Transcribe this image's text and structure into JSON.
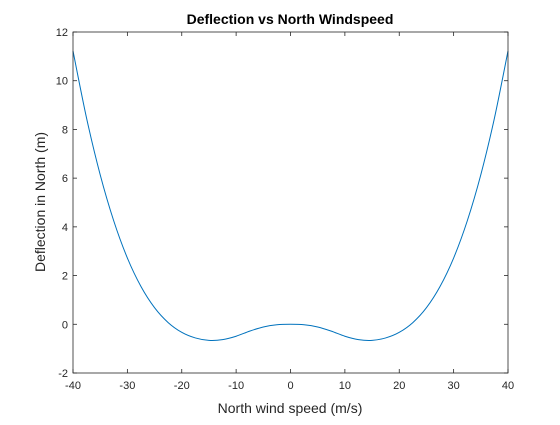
{
  "chart_data": {
    "type": "line",
    "title": "Deflection vs North Windspeed",
    "xlabel": "North wind speed (m/s)",
    "ylabel": "Deflection in North (m)",
    "xlim": [
      -40,
      40
    ],
    "ylim": [
      -2,
      12
    ],
    "xticks": [
      -40,
      -30,
      -20,
      -10,
      0,
      10,
      20,
      30,
      40
    ],
    "yticks": [
      -2,
      0,
      2,
      4,
      6,
      8,
      10,
      12
    ],
    "grid": false,
    "legend": "none",
    "series": [
      {
        "color": "#0072bd",
        "x": [
          -40,
          -37.5,
          -35,
          -32.5,
          -30,
          -27.5,
          -25,
          -22.5,
          -20,
          -17.5,
          -15,
          -12.5,
          -10,
          -7.5,
          -5,
          -2.5,
          0,
          2.5,
          5,
          7.5,
          10,
          12.5,
          15,
          17.5,
          20,
          22.5,
          25,
          27.5,
          30,
          32.5,
          35,
          37.5,
          40
        ],
        "y": [
          11.22,
          8.46,
          6.14,
          4.24,
          2.72,
          1.55,
          0.68,
          0.07,
          -0.33,
          -0.56,
          -0.66,
          -0.63,
          -0.49,
          -0.28,
          -0.11,
          -0.02,
          0,
          -0.02,
          -0.11,
          -0.28,
          -0.49,
          -0.63,
          -0.66,
          -0.56,
          -0.33,
          0.07,
          0.68,
          1.55,
          2.72,
          4.24,
          6.14,
          8.46,
          11.22
        ]
      }
    ]
  }
}
